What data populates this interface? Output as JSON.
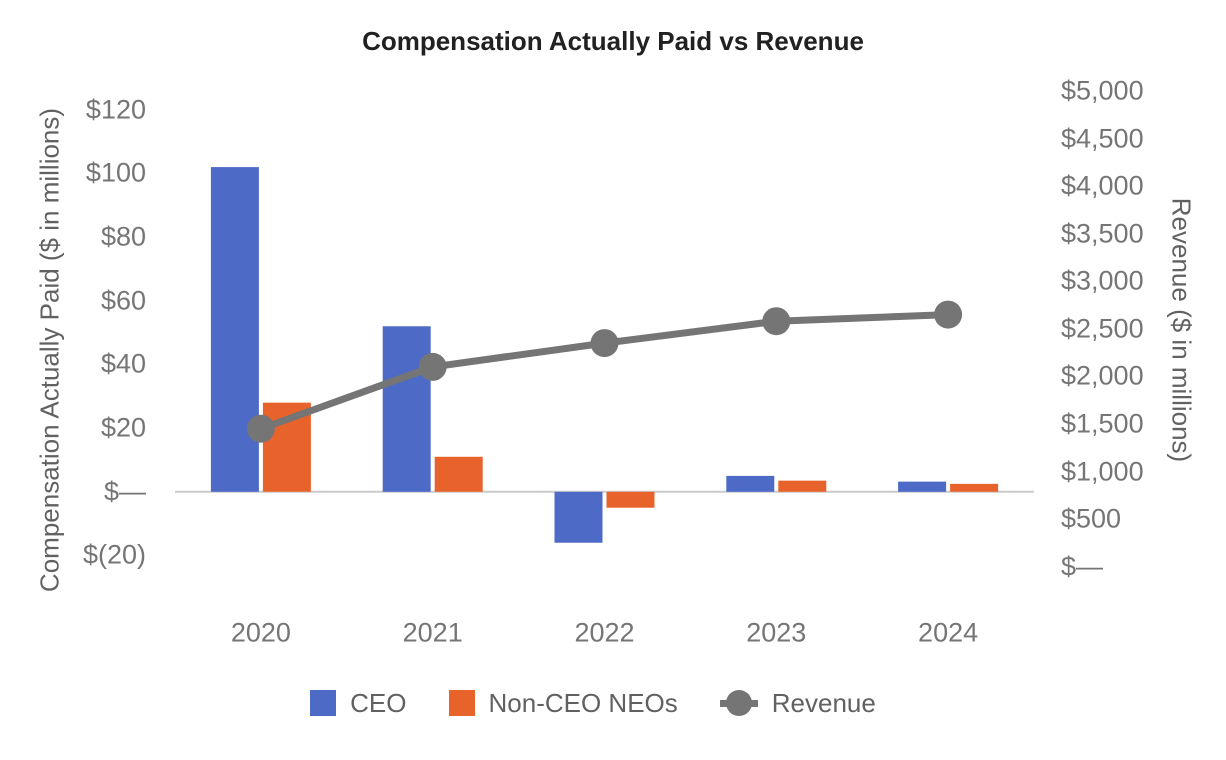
{
  "chart": {
    "title": "Compensation Actually Paid vs Revenue",
    "left_axis": {
      "title": "Compensation Actually Paid ($ in millions)",
      "ticks": [
        {
          "label": "$120",
          "value": 120
        },
        {
          "label": "$100",
          "value": 100
        },
        {
          "label": "$80",
          "value": 80
        },
        {
          "label": "$60",
          "value": 60
        },
        {
          "label": "$40",
          "value": 40
        },
        {
          "label": "$20",
          "value": 20
        },
        {
          "label": "$—",
          "value": 0
        },
        {
          "label": "$(20)",
          "value": -20
        }
      ]
    },
    "right_axis": {
      "title": "Revenue ($ in millions)",
      "ticks": [
        {
          "label": "$5,000",
          "value": 5000
        },
        {
          "label": "$4,500",
          "value": 4500
        },
        {
          "label": "$4,000",
          "value": 4000
        },
        {
          "label": "$3,500",
          "value": 3500
        },
        {
          "label": "$3,000",
          "value": 3000
        },
        {
          "label": "$2,500",
          "value": 2500
        },
        {
          "label": "$2,000",
          "value": 2000
        },
        {
          "label": "$1,500",
          "value": 1500
        },
        {
          "label": "$1,000",
          "value": 1000
        },
        {
          "label": "$500",
          "value": 500
        },
        {
          "label": "$—",
          "value": 0
        }
      ]
    },
    "legend": [
      {
        "label": "CEO",
        "marker": "square",
        "color": "#4D6BC6"
      },
      {
        "label": "Non-CEO NEOs",
        "marker": "square",
        "color": "#E8632C"
      },
      {
        "label": "Revenue",
        "marker": "line-dot",
        "color": "#757575"
      }
    ]
  },
  "chart_data": {
    "type": "bar",
    "subtype": "combo-dual-axis (grouped bars + line)",
    "title": "Compensation Actually Paid vs Revenue",
    "categories": [
      "2020",
      "2021",
      "2022",
      "2023",
      "2024"
    ],
    "series": [
      {
        "name": "CEO",
        "render": "bar",
        "axis": "left",
        "color": "#4D6BC6",
        "values": [
          102,
          52,
          -16,
          5,
          3.2
        ]
      },
      {
        "name": "Non-CEO NEOs",
        "render": "bar",
        "axis": "left",
        "color": "#E8632C",
        "values": [
          28,
          11,
          -5,
          3.5,
          2.5
        ]
      },
      {
        "name": "Revenue",
        "render": "line",
        "axis": "right",
        "color": "#757575",
        "values": [
          1450,
          2100,
          2350,
          2580,
          2650
        ]
      }
    ],
    "xlabel": "",
    "ylabel_left": "Compensation Actually Paid ($ in millions)",
    "ylabel_right": "Revenue ($ in millions)",
    "ylim_left": [
      -20,
      120
    ],
    "ylim_right": [
      0,
      5000
    ],
    "grid": false,
    "baseline_color": "#CCCCCC",
    "legend_position": "bottom"
  }
}
